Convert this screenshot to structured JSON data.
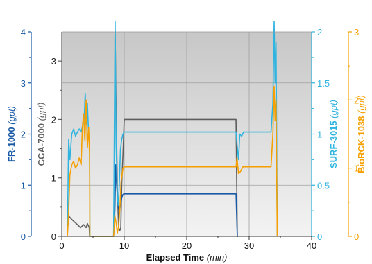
{
  "chart_data": {
    "type": "line",
    "background": "gradient grey",
    "grid": true,
    "xlim": [
      0,
      40
    ],
    "x_ticks": [
      "0",
      "10",
      "20",
      "30",
      "40"
    ],
    "xlabel": {
      "text": "Elapsed Time",
      "unit": "(min)"
    },
    "axes": [
      {
        "id": "fr",
        "label": "FR-1000",
        "unit": "(gpt)",
        "color": "#1a5aa6",
        "ylim": [
          0,
          4
        ],
        "ticks": [
          "0",
          "1",
          "2",
          "3",
          "4"
        ]
      },
      {
        "id": "cca",
        "label": "CCA-7000",
        "unit": "(gpt)",
        "color": "#5e5e5e",
        "ylim": [
          0,
          3.5
        ],
        "ticks": [
          "0",
          "1",
          "2",
          "3"
        ]
      },
      {
        "id": "surf",
        "label": "SURF-3015",
        "unit": "(gpt)",
        "color": "#2fb4e0",
        "ylim": [
          0,
          2
        ],
        "ticks": [
          "0",
          "0.5",
          "1",
          "1.5",
          "2"
        ]
      },
      {
        "id": "bio",
        "label": "BioRCK-1038",
        "unit": "(gpt)",
        "color": "#f5a000",
        "ylim": [
          0,
          3
        ],
        "ticks": [
          "0",
          "1",
          "2",
          "3"
        ]
      }
    ],
    "series": [
      {
        "name": "CCA-7000",
        "axis": "cca",
        "color": "#5e5e5e",
        "x": [
          0.9,
          1.1,
          1.5,
          2,
          2.5,
          3,
          3.5,
          3.9,
          4.1,
          4.4,
          4.45,
          4.5,
          8.3,
          8.45,
          8.55,
          8.7,
          8.9,
          9.1,
          9.3,
          9.45,
          9.6,
          9.8,
          10,
          10.5,
          12,
          15,
          18,
          20,
          22,
          24,
          26,
          27.9,
          28.0,
          28.1,
          28.2
        ],
        "y": [
          0.05,
          0.35,
          0.3,
          0.25,
          0.2,
          0.15,
          0.2,
          0.15,
          0.22,
          0.15,
          0.0,
          0.0,
          0.0,
          1.2,
          3.5,
          2.2,
          0.8,
          0.15,
          0.1,
          0.15,
          0.9,
          1.4,
          2.0,
          2.0,
          2.0,
          2.0,
          2.0,
          2.0,
          2.0,
          2.0,
          2.0,
          2.0,
          1.0,
          0.0,
          0.0
        ]
      },
      {
        "name": "FR-1000",
        "axis": "fr",
        "color": "#1a5aa6",
        "x": [
          8.3,
          8.5,
          8.65,
          8.8,
          9.0,
          9.2,
          9.4,
          9.6,
          9.8,
          10.0,
          10.5,
          12,
          15,
          18,
          20,
          22,
          24,
          26,
          27.9,
          28.0,
          28.1,
          28.2
        ],
        "y": [
          0.0,
          0.5,
          1.4,
          1.0,
          0.6,
          0.5,
          0.6,
          0.75,
          0.82,
          0.83,
          0.83,
          0.83,
          0.83,
          0.83,
          0.83,
          0.83,
          0.83,
          0.83,
          0.83,
          0.4,
          0.0,
          0.0
        ]
      },
      {
        "name": "SURF-3015",
        "axis": "surf",
        "color": "#2fb4e0",
        "x": [
          0.9,
          1.1,
          1.3,
          1.6,
          1.9,
          2.2,
          2.5,
          2.8,
          3.1,
          3.4,
          3.6,
          3.75,
          3.9,
          4.1,
          4.3,
          4.45,
          4.5,
          8.3,
          8.45,
          8.55,
          8.7,
          8.9,
          9.05,
          9.2,
          9.4,
          9.6,
          9.8,
          10.0,
          10.5,
          12,
          15,
          18,
          20,
          22,
          24,
          26,
          27.9,
          28.05,
          28.3,
          28.5,
          28.8,
          29.1,
          30,
          32,
          33.5,
          33.8,
          34.0,
          34.15,
          34.3,
          34.4,
          34.5
        ],
        "y": [
          0.0,
          0.95,
          0.75,
          1.0,
          1.05,
          0.98,
          1.02,
          1.05,
          1.02,
          1.1,
          1.15,
          1.4,
          1.1,
          1.3,
          1.0,
          0.95,
          0.0,
          0.0,
          1.4,
          2.1,
          0.9,
          0.4,
          0.3,
          0.5,
          0.85,
          0.95,
          1.0,
          1.02,
          1.02,
          1.02,
          1.02,
          1.02,
          1.02,
          1.02,
          1.02,
          1.02,
          1.02,
          0.9,
          0.75,
          1.0,
          0.98,
          1.02,
          1.02,
          1.02,
          1.02,
          1.3,
          2.1,
          1.5,
          1.9,
          1.0,
          0.0
        ]
      },
      {
        "name": "BioRCK-1038",
        "axis": "bio",
        "color": "#f5a000",
        "x": [
          0.9,
          1.1,
          1.3,
          1.6,
          1.9,
          2.2,
          2.5,
          2.8,
          3.1,
          3.3,
          3.5,
          3.7,
          3.9,
          4.1,
          4.3,
          4.45,
          4.5,
          8.3,
          8.5,
          8.7,
          8.9,
          9.1,
          9.3,
          9.5,
          9.8,
          10.0,
          10.5,
          12,
          15,
          18,
          20,
          22,
          24,
          26,
          27.9,
          28.05,
          28.3,
          28.6,
          29,
          30,
          32,
          33.5,
          33.8,
          34.0,
          34.15,
          34.3,
          34.4,
          34.5
        ],
        "y": [
          0.0,
          0.35,
          0.9,
          1.05,
          1.1,
          1.0,
          1.05,
          1.15,
          1.05,
          1.6,
          1.8,
          1.4,
          2.0,
          1.3,
          1.6,
          1.2,
          0.0,
          0.0,
          0.3,
          0.2,
          0.05,
          0.15,
          0.4,
          0.8,
          1.0,
          1.02,
          1.02,
          1.02,
          1.02,
          1.02,
          1.02,
          1.02,
          1.02,
          1.02,
          1.02,
          1.15,
          0.92,
          0.95,
          1.02,
          1.02,
          1.02,
          1.02,
          1.5,
          2.2,
          1.7,
          2.0,
          1.0,
          0.0
        ]
      }
    ]
  }
}
